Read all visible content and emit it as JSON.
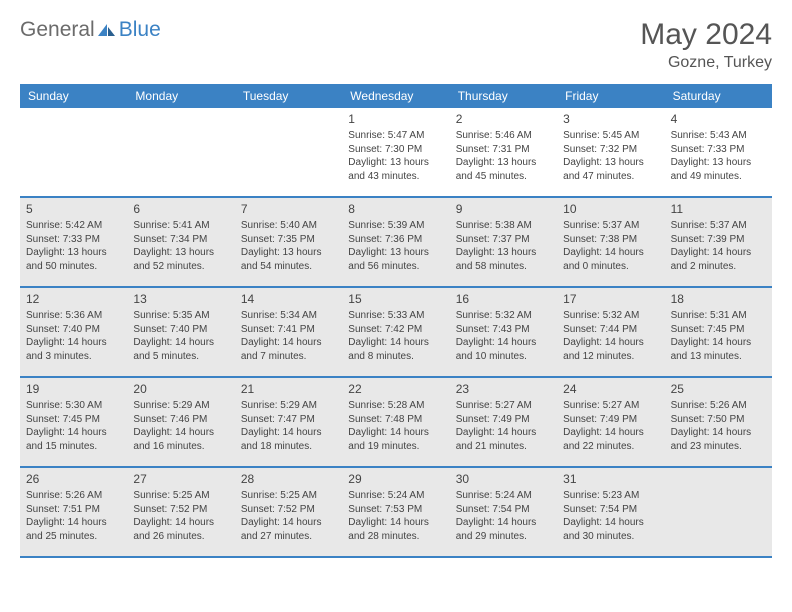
{
  "logo": {
    "general": "General",
    "blue": "Blue"
  },
  "title": "May 2024",
  "location": "Gozne, Turkey",
  "weekdays": [
    "Sunday",
    "Monday",
    "Tuesday",
    "Wednesday",
    "Thursday",
    "Friday",
    "Saturday"
  ],
  "colors": {
    "header_bg": "#3b82c4",
    "shade_bg": "#e8e8e8",
    "text": "#444444"
  },
  "weeks": [
    {
      "shaded": false,
      "days": [
        {
          "num": "",
          "lines": []
        },
        {
          "num": "",
          "lines": []
        },
        {
          "num": "",
          "lines": []
        },
        {
          "num": "1",
          "lines": [
            "Sunrise: 5:47 AM",
            "Sunset: 7:30 PM",
            "Daylight: 13 hours",
            "and 43 minutes."
          ]
        },
        {
          "num": "2",
          "lines": [
            "Sunrise: 5:46 AM",
            "Sunset: 7:31 PM",
            "Daylight: 13 hours",
            "and 45 minutes."
          ]
        },
        {
          "num": "3",
          "lines": [
            "Sunrise: 5:45 AM",
            "Sunset: 7:32 PM",
            "Daylight: 13 hours",
            "and 47 minutes."
          ]
        },
        {
          "num": "4",
          "lines": [
            "Sunrise: 5:43 AM",
            "Sunset: 7:33 PM",
            "Daylight: 13 hours",
            "and 49 minutes."
          ]
        }
      ]
    },
    {
      "shaded": true,
      "days": [
        {
          "num": "5",
          "lines": [
            "Sunrise: 5:42 AM",
            "Sunset: 7:33 PM",
            "Daylight: 13 hours",
            "and 50 minutes."
          ]
        },
        {
          "num": "6",
          "lines": [
            "Sunrise: 5:41 AM",
            "Sunset: 7:34 PM",
            "Daylight: 13 hours",
            "and 52 minutes."
          ]
        },
        {
          "num": "7",
          "lines": [
            "Sunrise: 5:40 AM",
            "Sunset: 7:35 PM",
            "Daylight: 13 hours",
            "and 54 minutes."
          ]
        },
        {
          "num": "8",
          "lines": [
            "Sunrise: 5:39 AM",
            "Sunset: 7:36 PM",
            "Daylight: 13 hours",
            "and 56 minutes."
          ]
        },
        {
          "num": "9",
          "lines": [
            "Sunrise: 5:38 AM",
            "Sunset: 7:37 PM",
            "Daylight: 13 hours",
            "and 58 minutes."
          ]
        },
        {
          "num": "10",
          "lines": [
            "Sunrise: 5:37 AM",
            "Sunset: 7:38 PM",
            "Daylight: 14 hours",
            "and 0 minutes."
          ]
        },
        {
          "num": "11",
          "lines": [
            "Sunrise: 5:37 AM",
            "Sunset: 7:39 PM",
            "Daylight: 14 hours",
            "and 2 minutes."
          ]
        }
      ]
    },
    {
      "shaded": true,
      "days": [
        {
          "num": "12",
          "lines": [
            "Sunrise: 5:36 AM",
            "Sunset: 7:40 PM",
            "Daylight: 14 hours",
            "and 3 minutes."
          ]
        },
        {
          "num": "13",
          "lines": [
            "Sunrise: 5:35 AM",
            "Sunset: 7:40 PM",
            "Daylight: 14 hours",
            "and 5 minutes."
          ]
        },
        {
          "num": "14",
          "lines": [
            "Sunrise: 5:34 AM",
            "Sunset: 7:41 PM",
            "Daylight: 14 hours",
            "and 7 minutes."
          ]
        },
        {
          "num": "15",
          "lines": [
            "Sunrise: 5:33 AM",
            "Sunset: 7:42 PM",
            "Daylight: 14 hours",
            "and 8 minutes."
          ]
        },
        {
          "num": "16",
          "lines": [
            "Sunrise: 5:32 AM",
            "Sunset: 7:43 PM",
            "Daylight: 14 hours",
            "and 10 minutes."
          ]
        },
        {
          "num": "17",
          "lines": [
            "Sunrise: 5:32 AM",
            "Sunset: 7:44 PM",
            "Daylight: 14 hours",
            "and 12 minutes."
          ]
        },
        {
          "num": "18",
          "lines": [
            "Sunrise: 5:31 AM",
            "Sunset: 7:45 PM",
            "Daylight: 14 hours",
            "and 13 minutes."
          ]
        }
      ]
    },
    {
      "shaded": true,
      "days": [
        {
          "num": "19",
          "lines": [
            "Sunrise: 5:30 AM",
            "Sunset: 7:45 PM",
            "Daylight: 14 hours",
            "and 15 minutes."
          ]
        },
        {
          "num": "20",
          "lines": [
            "Sunrise: 5:29 AM",
            "Sunset: 7:46 PM",
            "Daylight: 14 hours",
            "and 16 minutes."
          ]
        },
        {
          "num": "21",
          "lines": [
            "Sunrise: 5:29 AM",
            "Sunset: 7:47 PM",
            "Daylight: 14 hours",
            "and 18 minutes."
          ]
        },
        {
          "num": "22",
          "lines": [
            "Sunrise: 5:28 AM",
            "Sunset: 7:48 PM",
            "Daylight: 14 hours",
            "and 19 minutes."
          ]
        },
        {
          "num": "23",
          "lines": [
            "Sunrise: 5:27 AM",
            "Sunset: 7:49 PM",
            "Daylight: 14 hours",
            "and 21 minutes."
          ]
        },
        {
          "num": "24",
          "lines": [
            "Sunrise: 5:27 AM",
            "Sunset: 7:49 PM",
            "Daylight: 14 hours",
            "and 22 minutes."
          ]
        },
        {
          "num": "25",
          "lines": [
            "Sunrise: 5:26 AM",
            "Sunset: 7:50 PM",
            "Daylight: 14 hours",
            "and 23 minutes."
          ]
        }
      ]
    },
    {
      "shaded": true,
      "days": [
        {
          "num": "26",
          "lines": [
            "Sunrise: 5:26 AM",
            "Sunset: 7:51 PM",
            "Daylight: 14 hours",
            "and 25 minutes."
          ]
        },
        {
          "num": "27",
          "lines": [
            "Sunrise: 5:25 AM",
            "Sunset: 7:52 PM",
            "Daylight: 14 hours",
            "and 26 minutes."
          ]
        },
        {
          "num": "28",
          "lines": [
            "Sunrise: 5:25 AM",
            "Sunset: 7:52 PM",
            "Daylight: 14 hours",
            "and 27 minutes."
          ]
        },
        {
          "num": "29",
          "lines": [
            "Sunrise: 5:24 AM",
            "Sunset: 7:53 PM",
            "Daylight: 14 hours",
            "and 28 minutes."
          ]
        },
        {
          "num": "30",
          "lines": [
            "Sunrise: 5:24 AM",
            "Sunset: 7:54 PM",
            "Daylight: 14 hours",
            "and 29 minutes."
          ]
        },
        {
          "num": "31",
          "lines": [
            "Sunrise: 5:23 AM",
            "Sunset: 7:54 PM",
            "Daylight: 14 hours",
            "and 30 minutes."
          ]
        },
        {
          "num": "",
          "lines": []
        }
      ]
    }
  ]
}
